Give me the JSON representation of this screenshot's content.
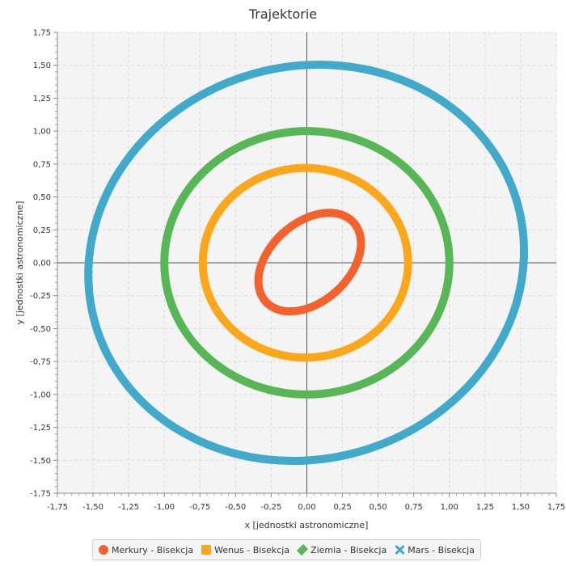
{
  "chart_data": {
    "type": "scatter",
    "title": "Trajektorie",
    "xlabel": "x [jednostki astronomiczne]",
    "ylabel": "y [jednostki astronomiczne]",
    "xlim": [
      -1.75,
      1.75
    ],
    "ylim": [
      -1.75,
      1.75
    ],
    "tick_step": 0.25,
    "minor_per_major": 5,
    "grid": true,
    "legend_position": "bottom",
    "tick_labels": [
      "-1,75",
      "-1,50",
      "-1,25",
      "-1,00",
      "-0,75",
      "-0,50",
      "-0,25",
      "0,00",
      "0,25",
      "0,50",
      "0,75",
      "1,00",
      "1,25",
      "1,50",
      "1,75"
    ],
    "series": [
      {
        "name": "Merkury - Bisekcja",
        "color": "#f3622d",
        "marker": "circle",
        "ellipse": {
          "cx": 0.02,
          "cy": 0.005,
          "a": 0.415,
          "b": 0.3,
          "rotation_deg": 42
        }
      },
      {
        "name": "Wenus - Bisekcja",
        "color": "#fba71b",
        "marker": "square",
        "ellipse": {
          "cx": -0.01,
          "cy": 0.0,
          "a": 0.72,
          "b": 0.72,
          "rotation_deg": 0
        }
      },
      {
        "name": "Ziemia - Bisekcja",
        "color": "#57b757",
        "marker": "diamond",
        "ellipse": {
          "cx": 0.0,
          "cy": 0.0,
          "a": 1.0,
          "b": 1.0,
          "rotation_deg": 0
        }
      },
      {
        "name": "Mars - Bisekcja",
        "color": "#41a9c9",
        "marker": "cross",
        "ellipse": {
          "cx": -0.005,
          "cy": 0.0,
          "a": 1.54,
          "b": 1.49,
          "rotation_deg": 16
        }
      }
    ]
  }
}
